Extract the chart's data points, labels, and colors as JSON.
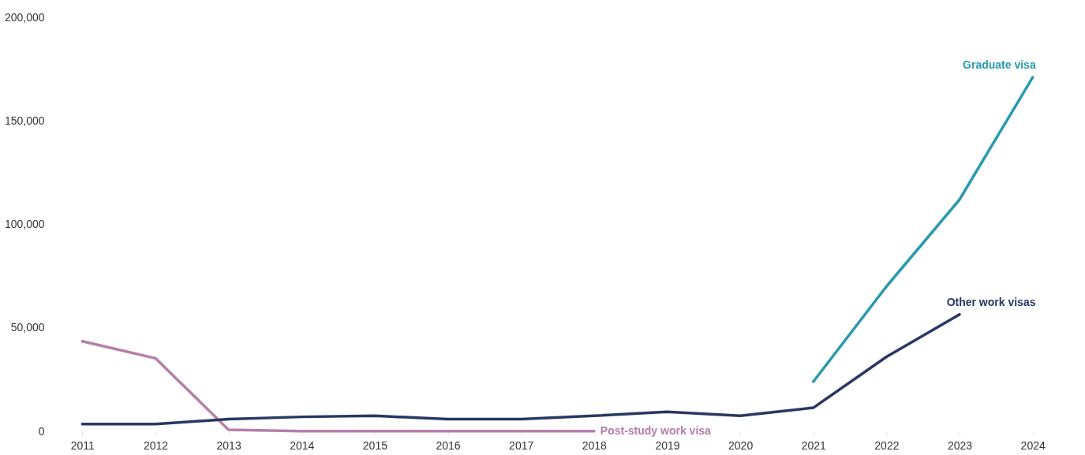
{
  "chart_data": {
    "type": "line",
    "categories": [
      "2011",
      "2012",
      "2013",
      "2014",
      "2015",
      "2016",
      "2017",
      "2018",
      "2019",
      "2020",
      "2021",
      "2022",
      "2023",
      "2024"
    ],
    "series": [
      {
        "name": "Post-study work visa",
        "color": "#b57fa8",
        "values": [
          43500,
          35300,
          800,
          100,
          100,
          100,
          100,
          100,
          null,
          null,
          null,
          null,
          null,
          null
        ]
      },
      {
        "name": "Other work visas",
        "color": "#283862",
        "values": [
          3500,
          3500,
          5900,
          7000,
          7500,
          5900,
          5900,
          7500,
          9400,
          7500,
          11400,
          36000,
          56500,
          null
        ]
      },
      {
        "name": "Graduate visa",
        "color": "#2a9aad",
        "values": [
          null,
          null,
          null,
          null,
          null,
          null,
          null,
          null,
          null,
          null,
          24000,
          70000,
          112000,
          171000
        ]
      }
    ],
    "ylim": [
      0,
      200000
    ],
    "yticks": [
      0,
      {
        "value": 50000,
        "label": "50,000"
      },
      {
        "value": 100000,
        "label": "100,000"
      },
      {
        "value": 150000,
        "label": "150,000"
      },
      {
        "value": 200000,
        "label": "200,000"
      }
    ],
    "grid": false,
    "line_style": "solid",
    "marker": "none"
  }
}
